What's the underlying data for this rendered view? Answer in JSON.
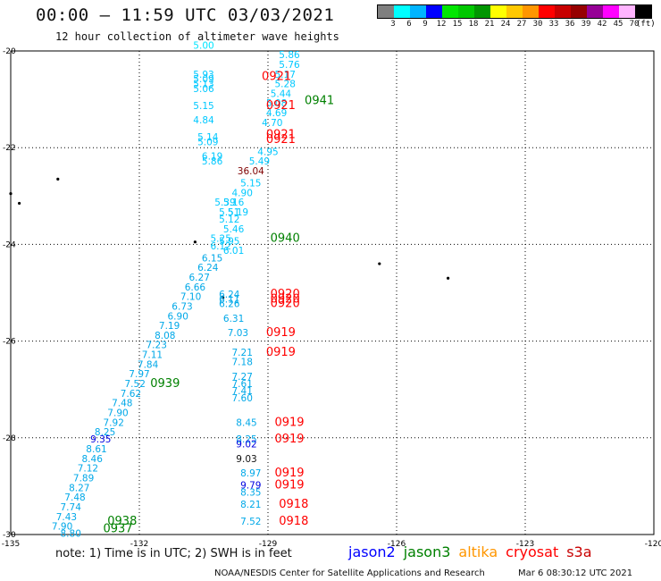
{
  "header": {
    "title": "00:00 — 11:59 UTC 03/03/2021",
    "subtitle": "12 hour collection of altimeter wave heights"
  },
  "colorbar": {
    "colors": [
      "#7f7f7f",
      "#00ffff",
      "#00b4ff",
      "#0000ff",
      "#00e600",
      "#00c800",
      "#009600",
      "#ffff00",
      "#ffc800",
      "#ff9600",
      "#ff0000",
      "#c80000",
      "#960000",
      "#960096",
      "#ff00ff",
      "#ffb4ff",
      "#000000"
    ],
    "ticks": [
      "3",
      "6",
      "9",
      "12",
      "15",
      "18",
      "21",
      "24",
      "27",
      "30",
      "33",
      "36",
      "39",
      "42",
      "45",
      "70"
    ],
    "unit": "(ft)"
  },
  "axes": {
    "lon_ticks": [
      "-135",
      "-132",
      "-129",
      "-126",
      "-123",
      "-120"
    ],
    "lat_ticks": [
      "-20",
      "-22",
      "-24",
      "-26",
      "-28",
      "-30"
    ]
  },
  "track_labels": [
    {
      "id": "0921",
      "color": "#ff0000",
      "lon": -128.8,
      "lat": -20.6
    },
    {
      "id": "0921",
      "color": "#ff0000",
      "lon": -128.7,
      "lat": -21.2
    },
    {
      "id": "0921",
      "color": "#ff0000",
      "lon": -128.7,
      "lat": -21.8
    },
    {
      "id": "0921",
      "color": "#ff0000",
      "lon": -128.7,
      "lat": -21.9
    },
    {
      "id": "0941",
      "color": "#008000",
      "lon": -127.8,
      "lat": -21.1
    },
    {
      "id": "0940",
      "color": "#008000",
      "lon": -128.6,
      "lat": -23.95
    },
    {
      "id": "0920",
      "color": "#ff0000",
      "lon": -128.6,
      "lat": -25.1
    },
    {
      "id": "0920",
      "color": "#ff0000",
      "lon": -128.6,
      "lat": -25.2
    },
    {
      "id": "0920",
      "color": "#ff0000",
      "lon": -128.6,
      "lat": -25.3
    },
    {
      "id": "0919",
      "color": "#ff0000",
      "lon": -128.7,
      "lat": -25.9
    },
    {
      "id": "0919",
      "color": "#ff0000",
      "lon": -128.7,
      "lat": -26.3
    },
    {
      "id": "0939",
      "color": "#008000",
      "lon": -131.4,
      "lat": -26.95
    },
    {
      "id": "0919",
      "color": "#ff0000",
      "lon": -128.5,
      "lat": -27.75
    },
    {
      "id": "0919",
      "color": "#ff0000",
      "lon": -128.5,
      "lat": -28.1
    },
    {
      "id": "0919",
      "color": "#ff0000",
      "lon": -128.5,
      "lat": -28.8
    },
    {
      "id": "0919",
      "color": "#ff0000",
      "lon": -128.5,
      "lat": -29.05
    },
    {
      "id": "0918",
      "color": "#ff0000",
      "lon": -128.4,
      "lat": -29.45
    },
    {
      "id": "0918",
      "color": "#ff0000",
      "lon": -128.4,
      "lat": -29.8
    },
    {
      "id": "0938",
      "color": "#008000",
      "lon": -132.4,
      "lat": -29.8
    },
    {
      "id": "0937",
      "color": "#008000",
      "lon": -132.5,
      "lat": -29.95
    }
  ],
  "swh_values": [
    {
      "v": "5.00",
      "lon": -130.5,
      "lat": -19.95,
      "c": "#00e5ff"
    },
    {
      "v": "5.86",
      "lon": -128.5,
      "lat": -20.15,
      "c": "#00c8ff"
    },
    {
      "v": "5.76",
      "lon": -128.5,
      "lat": -20.35,
      "c": "#00c8ff"
    },
    {
      "v": "5.17",
      "lon": -128.6,
      "lat": -20.55,
      "c": "#00c8ff"
    },
    {
      "v": "5.28",
      "lon": -128.6,
      "lat": -20.75,
      "c": "#00c8ff"
    },
    {
      "v": "5.44",
      "lon": -128.7,
      "lat": -20.95,
      "c": "#00c8ff"
    },
    {
      "v": "5.08",
      "lon": -128.8,
      "lat": -21.15,
      "c": "#00c8ff"
    },
    {
      "v": "4.69",
      "lon": -128.8,
      "lat": -21.35,
      "c": "#00c8ff"
    },
    {
      "v": "4.70",
      "lon": -128.9,
      "lat": -21.55,
      "c": "#00c8ff"
    },
    {
      "v": "4.95",
      "lon": -129.0,
      "lat": -22.15,
      "c": "#00c8ff"
    },
    {
      "v": "5.49",
      "lon": -129.2,
      "lat": -22.35,
      "c": "#00c8ff"
    },
    {
      "v": "36.04",
      "lon": -129.4,
      "lat": -22.55,
      "c": "#7f0000"
    },
    {
      "v": "5.15",
      "lon": -129.4,
      "lat": -22.8,
      "c": "#00c8ff"
    },
    {
      "v": "4.90",
      "lon": -129.6,
      "lat": -23.0,
      "c": "#00c8ff"
    },
    {
      "v": "5.16",
      "lon": -129.8,
      "lat": -23.2,
      "c": "#00c8ff"
    },
    {
      "v": "5.39",
      "lon": -130.0,
      "lat": -23.2,
      "c": "#00c8ff"
    },
    {
      "v": "5.19",
      "lon": -129.7,
      "lat": -23.4,
      "c": "#00c8ff"
    },
    {
      "v": "5.51",
      "lon": -129.9,
      "lat": -23.4,
      "c": "#00c8ff"
    },
    {
      "v": "5.12",
      "lon": -129.9,
      "lat": -23.55,
      "c": "#00c8ff"
    },
    {
      "v": "5.46",
      "lon": -129.8,
      "lat": -23.75,
      "c": "#00c8ff"
    },
    {
      "v": "5.95",
      "lon": -129.9,
      "lat": -24.0,
      "c": "#00c8ff"
    },
    {
      "v": "5.25",
      "lon": -130.1,
      "lat": -23.95,
      "c": "#00c8ff"
    },
    {
      "v": "6.01",
      "lon": -129.8,
      "lat": -24.2,
      "c": "#00c8ff"
    },
    {
      "v": "6.12",
      "lon": -130.1,
      "lat": -24.1,
      "c": "#00c8ff"
    },
    {
      "v": "6.15",
      "lon": -130.3,
      "lat": -24.35,
      "c": "#00a8e8"
    },
    {
      "v": "6.24",
      "lon": -130.4,
      "lat": -24.55,
      "c": "#00a8e8"
    },
    {
      "v": "6.27",
      "lon": -130.6,
      "lat": -24.75,
      "c": "#00a8e8"
    },
    {
      "v": "6.66",
      "lon": -130.7,
      "lat": -24.95,
      "c": "#00a8e8"
    },
    {
      "v": "7.10",
      "lon": -130.8,
      "lat": -25.15,
      "c": "#00a8e8"
    },
    {
      "v": "6.73",
      "lon": -131.0,
      "lat": -25.35,
      "c": "#00a8e8"
    },
    {
      "v": "6.90",
      "lon": -131.1,
      "lat": -25.55,
      "c": "#00a8e8"
    },
    {
      "v": "7.19",
      "lon": -131.3,
      "lat": -25.75,
      "c": "#00a8e8"
    },
    {
      "v": "8.08",
      "lon": -131.4,
      "lat": -25.95,
      "c": "#00a8e8"
    },
    {
      "v": "7.23",
      "lon": -131.6,
      "lat": -26.15,
      "c": "#00a8e8"
    },
    {
      "v": "7.11",
      "lon": -131.7,
      "lat": -26.35,
      "c": "#00a8e8"
    },
    {
      "v": "7.84",
      "lon": -131.8,
      "lat": -26.55,
      "c": "#00a8e8"
    },
    {
      "v": "7.97",
      "lon": -132.0,
      "lat": -26.75,
      "c": "#00a8e8"
    },
    {
      "v": "7.52",
      "lon": -132.1,
      "lat": -26.95,
      "c": "#00a8e8"
    },
    {
      "v": "7.62",
      "lon": -132.2,
      "lat": -27.15,
      "c": "#00a8e8"
    },
    {
      "v": "7.48",
      "lon": -132.4,
      "lat": -27.35,
      "c": "#00a8e8"
    },
    {
      "v": "7.90",
      "lon": -132.5,
      "lat": -27.55,
      "c": "#00a8e8"
    },
    {
      "v": "7.92",
      "lon": -132.6,
      "lat": -27.75,
      "c": "#00a8e8"
    },
    {
      "v": "8.25",
      "lon": -132.8,
      "lat": -27.95,
      "c": "#00a8e8"
    },
    {
      "v": "9.35",
      "lon": -132.9,
      "lat": -28.1,
      "c": "#0000e0"
    },
    {
      "v": "8.61",
      "lon": -133.0,
      "lat": -28.3,
      "c": "#00a8e8"
    },
    {
      "v": "8.46",
      "lon": -133.1,
      "lat": -28.5,
      "c": "#00a8e8"
    },
    {
      "v": "7.12",
      "lon": -133.2,
      "lat": -28.7,
      "c": "#00a8e8"
    },
    {
      "v": "7.89",
      "lon": -133.3,
      "lat": -28.9,
      "c": "#00a8e8"
    },
    {
      "v": "8.27",
      "lon": -133.4,
      "lat": -29.1,
      "c": "#00a8e8"
    },
    {
      "v": "7.48",
      "lon": -133.5,
      "lat": -29.3,
      "c": "#00a8e8"
    },
    {
      "v": "7.74",
      "lon": -133.6,
      "lat": -29.5,
      "c": "#00a8e8"
    },
    {
      "v": "7.43",
      "lon": -133.7,
      "lat": -29.7,
      "c": "#00a8e8"
    },
    {
      "v": "7.90",
      "lon": -133.8,
      "lat": -29.9,
      "c": "#00a8e8"
    },
    {
      "v": "8.80",
      "lon": -133.6,
      "lat": -30.05,
      "c": "#00a8e8"
    },
    {
      "v": "5.93",
      "lon": -130.5,
      "lat": -20.55,
      "c": "#00c8ff"
    },
    {
      "v": "5.09",
      "lon": -130.5,
      "lat": -20.65,
      "c": "#00c8ff"
    },
    {
      "v": "5.13",
      "lon": -130.5,
      "lat": -20.75,
      "c": "#00c8ff"
    },
    {
      "v": "5.06",
      "lon": -130.5,
      "lat": -20.85,
      "c": "#00c8ff"
    },
    {
      "v": "5.15",
      "lon": -130.5,
      "lat": -21.2,
      "c": "#00c8ff"
    },
    {
      "v": "4.84",
      "lon": -130.5,
      "lat": -21.5,
      "c": "#00c8ff"
    },
    {
      "v": "5.14",
      "lon": -130.4,
      "lat": -21.85,
      "c": "#00c8ff"
    },
    {
      "v": "5.09",
      "lon": -130.4,
      "lat": -21.95,
      "c": "#00c8ff"
    },
    {
      "v": "6.19",
      "lon": -130.3,
      "lat": -22.25,
      "c": "#00c8ff"
    },
    {
      "v": "5.86",
      "lon": -130.3,
      "lat": -22.35,
      "c": "#00c8ff"
    },
    {
      "v": "6.24",
      "lon": -129.9,
      "lat": -25.1,
      "c": "#00a8e8"
    },
    {
      "v": "6.11",
      "lon": -129.9,
      "lat": -25.2,
      "c": "#00a8e8"
    },
    {
      "v": "6.26",
      "lon": -129.9,
      "lat": -25.3,
      "c": "#00a8e8"
    },
    {
      "v": "6.31",
      "lon": -129.8,
      "lat": -25.6,
      "c": "#00a8e8"
    },
    {
      "v": "7.03",
      "lon": -129.7,
      "lat": -25.9,
      "c": "#00a8e8"
    },
    {
      "v": "7.21",
      "lon": -129.6,
      "lat": -26.3,
      "c": "#00a8e8"
    },
    {
      "v": "7.18",
      "lon": -129.6,
      "lat": -26.5,
      "c": "#00a8e8"
    },
    {
      "v": "7.27",
      "lon": -129.6,
      "lat": -26.8,
      "c": "#00a8e8"
    },
    {
      "v": "7.61",
      "lon": -129.6,
      "lat": -26.95,
      "c": "#00a8e8"
    },
    {
      "v": "7.41",
      "lon": -129.6,
      "lat": -27.1,
      "c": "#00a8e8"
    },
    {
      "v": "7.60",
      "lon": -129.6,
      "lat": -27.25,
      "c": "#00a8e8"
    },
    {
      "v": "8.45",
      "lon": -129.5,
      "lat": -27.75,
      "c": "#00a8e8"
    },
    {
      "v": "8.25",
      "lon": -129.5,
      "lat": -28.1,
      "c": "#00a8e8"
    },
    {
      "v": "9.02",
      "lon": -129.5,
      "lat": -28.2,
      "c": "#0000e0"
    },
    {
      "v": "9.03",
      "lon": -129.5,
      "lat": -28.5,
      "c": "#111111"
    },
    {
      "v": "8.97",
      "lon": -129.4,
      "lat": -28.8,
      "c": "#00a8e8"
    },
    {
      "v": "9.79",
      "lon": -129.4,
      "lat": -29.05,
      "c": "#0000e0"
    },
    {
      "v": "8.35",
      "lon": -129.4,
      "lat": -29.2,
      "c": "#00a8e8"
    },
    {
      "v": "8.21",
      "lon": -129.4,
      "lat": -29.45,
      "c": "#00a8e8"
    },
    {
      "v": "7.52",
      "lon": -129.4,
      "lat": -29.8,
      "c": "#00a8e8"
    }
  ],
  "islands": [
    {
      "lon": -133.9,
      "lat": -22.65
    },
    {
      "lon": -134.8,
      "lat": -23.15
    },
    {
      "lon": -135.0,
      "lat": -22.95
    },
    {
      "lon": -130.7,
      "lat": -23.95
    },
    {
      "lon": -130.05,
      "lat": -25.1
    },
    {
      "lon": -126.4,
      "lat": -24.4
    },
    {
      "lon": -124.8,
      "lat": -24.7
    }
  ],
  "footer": {
    "note": "note: 1) Time is in UTC; 2) SWH is in feet",
    "legend": [
      {
        "label": "jason2",
        "color": "#0000ff"
      },
      {
        "label": "jason3",
        "color": "#008000"
      },
      {
        "label": "altika",
        "color": "#ff9600"
      },
      {
        "label": "cryosat",
        "color": "#ff0000"
      },
      {
        "label": "s3a",
        "color": "#c80000"
      }
    ],
    "credit": "NOAA/NESDIS Center for Satellite Applications and Research",
    "timestamp": "Mar  6 08:30:12 UTC 2021"
  }
}
